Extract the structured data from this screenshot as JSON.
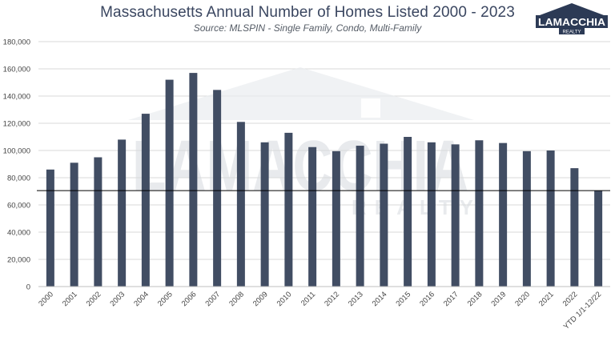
{
  "title": "Massachusetts Annual Number of Homes Listed 2000 - 2023",
  "subtitle": "Source: MLSPIN - Single Family, Condo, Multi-Family",
  "logo": {
    "name": "LAMACCHIA",
    "tagline": "REALTY"
  },
  "watermark": {
    "name": "LAMACCHIA",
    "tagline": "REALTY"
  },
  "colors": {
    "bar": "#414d63",
    "title": "#3a4660",
    "grid": "#d9d9d9",
    "reference_line": "#000000",
    "watermark": "#d6dae0"
  },
  "chart_data": {
    "type": "bar",
    "categories": [
      "2000",
      "2001",
      "2002",
      "2003",
      "2004",
      "2005",
      "2006",
      "2007",
      "2008",
      "2009",
      "2010",
      "2011",
      "2012",
      "2013",
      "2014",
      "2015",
      "2016",
      "2017",
      "2018",
      "2019",
      "2020",
      "2021",
      "2022",
      "YTD 1/1-12/22"
    ],
    "values": [
      86000,
      91000,
      95000,
      108000,
      127000,
      152000,
      157000,
      144500,
      121000,
      106000,
      113000,
      102500,
      99500,
      103500,
      105000,
      110000,
      106000,
      104500,
      107500,
      105500,
      99500,
      100000,
      87000,
      70500
    ],
    "reference_line": 70500,
    "ylim": [
      0,
      180000
    ],
    "y_ticks": [
      "0",
      "20,000",
      "40,000",
      "60,000",
      "80,000",
      "100,000",
      "120,000",
      "140,000",
      "160,000",
      "180,000"
    ],
    "y_tick_values": [
      0,
      20000,
      40000,
      60000,
      80000,
      100000,
      120000,
      140000,
      160000,
      180000
    ],
    "grid": true,
    "legend": "none"
  }
}
